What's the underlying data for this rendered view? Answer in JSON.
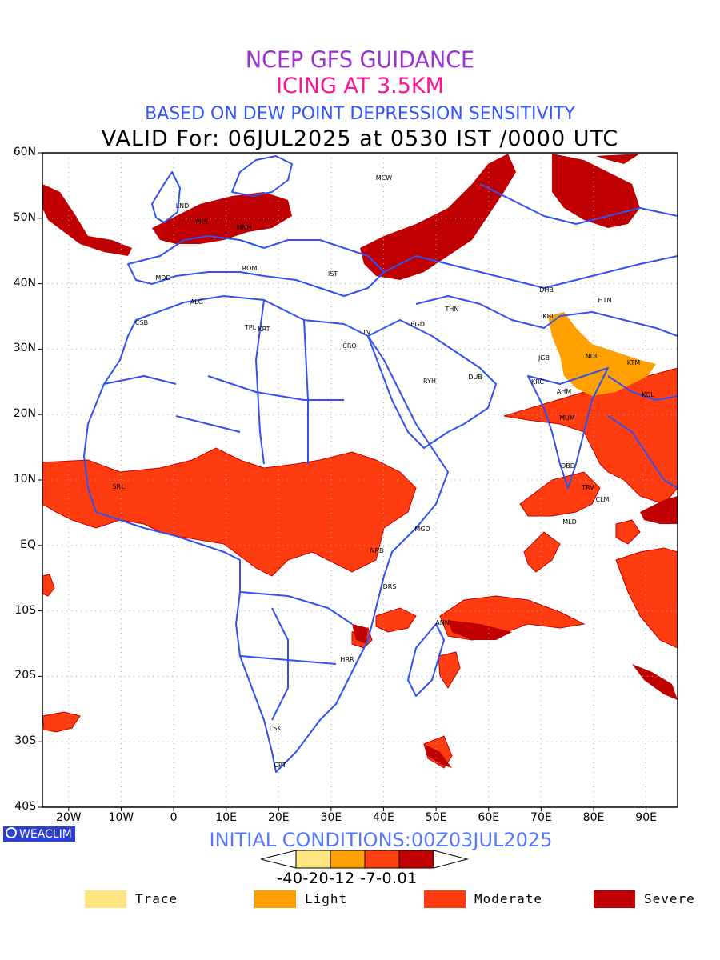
{
  "titles": {
    "line1": "NCEP GFS GUIDANCE",
    "line2": "ICING AT 3.5KM",
    "line3": "BASED ON DEW POINT DEPRESSION SENSITIVITY",
    "valid": "VALID For: 06JUL2025 at 0530 IST /0000 UTC"
  },
  "axes": {
    "lat_labels": [
      "60N",
      "50N",
      "40N",
      "30N",
      "20N",
      "10N",
      "EQ",
      "10S",
      "20S",
      "30S",
      "40S"
    ],
    "lon_labels": [
      "20W",
      "10W",
      "0",
      "10E",
      "20E",
      "30E",
      "40E",
      "50E",
      "60E",
      "70E",
      "80E",
      "90E"
    ]
  },
  "stations": [
    "MCW",
    "LND",
    "PRS",
    "MNH",
    "ROM",
    "MDD",
    "IST",
    "ALG",
    "CSB",
    "TPL",
    "KRT",
    "CRO",
    "LV",
    "BGD",
    "THN",
    "RYH",
    "DUB",
    "DHB",
    "HTN",
    "KBL",
    "NDL",
    "KTM",
    "JGB",
    "KRC",
    "AHM",
    "KOL",
    "MUM",
    "DBD",
    "TRV",
    "CLM",
    "MLD",
    "MGD",
    "NRB",
    "DRS",
    "ANN",
    "HRR",
    "LSK",
    "CPT",
    "SRL"
  ],
  "brand": "WEACLIM",
  "initial_conditions": "INITIAL CONDITIONS:00Z03JUL2025",
  "colorbar": {
    "labels": "-40-20-12 -7-0.01",
    "colors": [
      "#ffe680",
      "#ffa000",
      "#ff4010",
      "#c00000"
    ]
  },
  "legend": [
    {
      "label": "Trace",
      "color": "#ffe680"
    },
    {
      "label": "Light",
      "color": "#ffa000"
    },
    {
      "label": "Moderate",
      "color": "#ff3c10"
    },
    {
      "label": "Severe",
      "color": "#c00000"
    }
  ],
  "colors": {
    "boundary": "#3050f0",
    "moderate": "#ff3c10",
    "severe": "#c00000",
    "light": "#ffa000"
  }
}
